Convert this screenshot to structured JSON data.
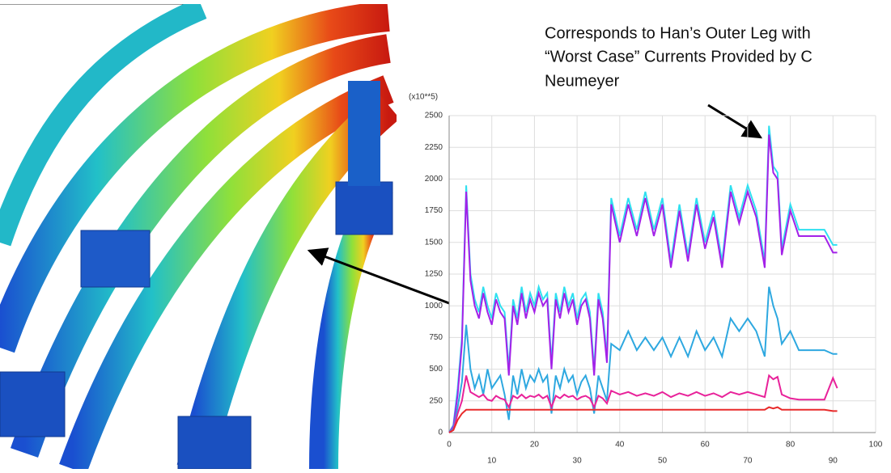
{
  "chart_data": {
    "type": "line",
    "annotation": [
      "Corresponds to Han’s Outer Leg with",
      "“Worst Case”  Currents Provided by C",
      "Neumeyer"
    ],
    "y_label": "(x10**5)",
    "x": [
      0,
      1,
      2,
      3,
      4,
      5,
      6,
      7,
      8,
      9,
      10,
      11,
      12,
      13,
      14,
      15,
      16,
      17,
      18,
      19,
      20,
      21,
      22,
      23,
      24,
      25,
      26,
      27,
      28,
      29,
      30,
      31,
      32,
      33,
      34,
      35,
      36,
      37,
      38,
      40,
      42,
      44,
      46,
      48,
      50,
      52,
      54,
      56,
      58,
      60,
      62,
      64,
      66,
      68,
      70,
      72,
      74,
      75,
      76,
      77,
      78,
      80,
      82,
      84,
      86,
      88,
      90,
      91
    ],
    "series": [
      {
        "color": "#2fe0f0",
        "values": [
          0,
          60,
          350,
          750,
          1950,
          1250,
          1050,
          950,
          1150,
          1000,
          900,
          1100,
          1000,
          950,
          500,
          1050,
          900,
          1150,
          950,
          1100,
          1000,
          1150,
          1050,
          1100,
          550,
          1100,
          950,
          1150,
          1000,
          1100,
          900,
          1050,
          1100,
          950,
          500,
          1100,
          950,
          600,
          1850,
          1550,
          1850,
          1600,
          1900,
          1600,
          1850,
          1350,
          1800,
          1400,
          1850,
          1500,
          1750,
          1350,
          1950,
          1700,
          1950,
          1750,
          1350,
          2420,
          2100,
          2050,
          1450,
          1800,
          1600,
          1600,
          1600,
          1600,
          1480,
          1480
        ]
      },
      {
        "color": "#a321e8",
        "values": [
          0,
          50,
          300,
          700,
          1900,
          1200,
          1000,
          900,
          1100,
          950,
          850,
          1050,
          950,
          900,
          450,
          1000,
          850,
          1100,
          900,
          1050,
          950,
          1100,
          1000,
          1050,
          500,
          1050,
          900,
          1100,
          950,
          1050,
          850,
          1000,
          1050,
          900,
          450,
          1050,
          900,
          550,
          1800,
          1500,
          1800,
          1550,
          1850,
          1550,
          1800,
          1300,
          1750,
          1350,
          1800,
          1450,
          1700,
          1300,
          1900,
          1650,
          1900,
          1700,
          1300,
          2350,
          2050,
          2000,
          1400,
          1750,
          1550,
          1550,
          1550,
          1550,
          1420,
          1420
        ]
      },
      {
        "color": "#2ea8e0",
        "values": [
          0,
          30,
          200,
          400,
          850,
          500,
          350,
          450,
          300,
          500,
          350,
          400,
          450,
          300,
          100,
          450,
          300,
          500,
          350,
          450,
          400,
          500,
          400,
          450,
          150,
          450,
          350,
          500,
          400,
          450,
          300,
          400,
          450,
          350,
          150,
          450,
          350,
          250,
          700,
          650,
          800,
          650,
          750,
          650,
          750,
          600,
          750,
          600,
          800,
          650,
          750,
          600,
          900,
          800,
          900,
          800,
          600,
          1150,
          1000,
          900,
          700,
          800,
          650,
          650,
          650,
          650,
          620,
          620
        ]
      },
      {
        "color": "#e8229a",
        "values": [
          0,
          20,
          150,
          250,
          450,
          320,
          300,
          280,
          300,
          260,
          250,
          290,
          270,
          260,
          200,
          290,
          270,
          300,
          270,
          290,
          280,
          300,
          270,
          290,
          200,
          290,
          270,
          300,
          280,
          290,
          260,
          280,
          290,
          270,
          200,
          290,
          270,
          230,
          330,
          300,
          320,
          290,
          310,
          290,
          320,
          280,
          310,
          290,
          320,
          290,
          310,
          280,
          320,
          300,
          320,
          300,
          280,
          450,
          420,
          440,
          300,
          270,
          260,
          260,
          260,
          260,
          430,
          350
        ]
      },
      {
        "color": "#e82a2a",
        "values": [
          0,
          20,
          100,
          150,
          180,
          180,
          180,
          180,
          180,
          180,
          180,
          180,
          180,
          180,
          180,
          180,
          180,
          180,
          180,
          180,
          180,
          180,
          180,
          180,
          180,
          180,
          180,
          180,
          180,
          180,
          180,
          180,
          180,
          180,
          180,
          180,
          180,
          180,
          180,
          180,
          180,
          180,
          180,
          180,
          180,
          180,
          180,
          180,
          180,
          180,
          180,
          180,
          180,
          180,
          180,
          180,
          180,
          200,
          190,
          200,
          180,
          180,
          180,
          180,
          180,
          180,
          170,
          170
        ]
      }
    ],
    "xlim": [
      0,
      100
    ],
    "xticks": [
      0,
      10,
      20,
      30,
      40,
      50,
      60,
      70,
      80,
      90,
      100
    ],
    "ylim": [
      0,
      2500
    ],
    "yticks": [
      0,
      250,
      500,
      750,
      1000,
      1250,
      1500,
      1750,
      2000,
      2250,
      2500
    ],
    "grid": true
  }
}
